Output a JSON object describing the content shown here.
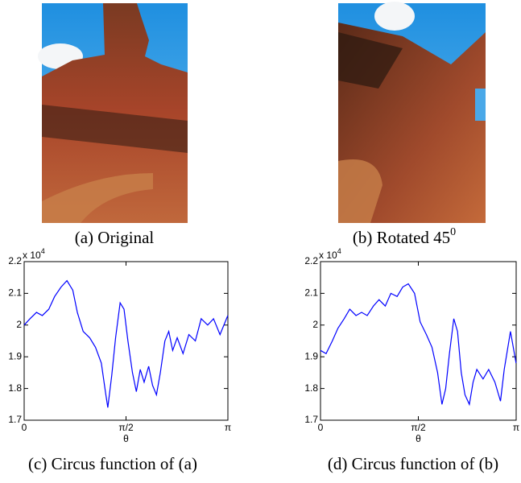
{
  "captions": [
    {
      "text": "(a) Original"
    },
    {
      "text": "(b) Rotated 45",
      "sup": "0"
    },
    {
      "text": "(c) Circus function of (a)"
    },
    {
      "text": "(d) Circus function of (b)"
    }
  ],
  "chart_data": [
    {
      "type": "line",
      "xlabel": "θ",
      "y_multiplier": "x 10",
      "y_multiplier_exponent": "4",
      "xlim": [
        0,
        3.1416
      ],
      "ylim": [
        1.7,
        2.2
      ],
      "xticks": [
        0,
        {
          "value": 1.5708,
          "label": "π/2"
        },
        {
          "value": 3.1416,
          "label": "π"
        }
      ],
      "yticks": [
        1.7,
        1.8,
        1.9,
        2,
        2.1,
        2.2
      ],
      "series": [
        {
          "color": "#0000ff",
          "x": [
            0,
            0.09,
            0.19,
            0.28,
            0.38,
            0.47,
            0.57,
            0.66,
            0.75,
            0.82,
            0.91,
            1.01,
            1.1,
            1.19,
            1.26,
            1.29,
            1.35,
            1.41,
            1.48,
            1.54,
            1.6,
            1.67,
            1.73,
            1.79,
            1.85,
            1.92,
            1.98,
            2.04,
            2.1,
            2.17,
            2.23,
            2.29,
            2.36,
            2.45,
            2.54,
            2.64,
            2.73,
            2.83,
            2.92,
            3.02,
            3.14
          ],
          "values": [
            2.0,
            2.02,
            2.04,
            2.03,
            2.05,
            2.09,
            2.12,
            2.14,
            2.11,
            2.04,
            1.98,
            1.96,
            1.93,
            1.88,
            1.78,
            1.74,
            1.84,
            1.96,
            2.07,
            2.05,
            1.95,
            1.85,
            1.79,
            1.86,
            1.82,
            1.87,
            1.81,
            1.78,
            1.85,
            1.95,
            1.98,
            1.92,
            1.96,
            1.91,
            1.97,
            1.95,
            2.02,
            2.0,
            2.02,
            1.97,
            2.03
          ]
        }
      ]
    },
    {
      "type": "line",
      "xlabel": "θ",
      "y_multiplier": "x 10",
      "y_multiplier_exponent": "4",
      "xlim": [
        0,
        3.1416
      ],
      "ylim": [
        1.7,
        2.2
      ],
      "xticks": [
        0,
        {
          "value": 1.5708,
          "label": "π/2"
        },
        {
          "value": 3.1416,
          "label": "π"
        }
      ],
      "yticks": [
        1.7,
        1.8,
        1.9,
        2,
        2.1,
        2.2
      ],
      "series": [
        {
          "color": "#0000ff",
          "x": [
            0,
            0.09,
            0.19,
            0.28,
            0.38,
            0.47,
            0.57,
            0.66,
            0.75,
            0.85,
            0.94,
            1.04,
            1.13,
            1.23,
            1.32,
            1.41,
            1.51,
            1.6,
            1.7,
            1.79,
            1.88,
            1.95,
            2.01,
            2.07,
            2.14,
            2.2,
            2.26,
            2.32,
            2.39,
            2.45,
            2.51,
            2.61,
            2.7,
            2.8,
            2.89,
            2.95,
            3.05,
            3.14
          ],
          "values": [
            1.92,
            1.91,
            1.95,
            1.99,
            2.02,
            2.05,
            2.03,
            2.04,
            2.03,
            2.06,
            2.08,
            2.06,
            2.1,
            2.09,
            2.12,
            2.13,
            2.1,
            2.01,
            1.97,
            1.93,
            1.85,
            1.75,
            1.8,
            1.91,
            2.02,
            1.98,
            1.85,
            1.78,
            1.75,
            1.82,
            1.86,
            1.83,
            1.86,
            1.82,
            1.76,
            1.86,
            1.98,
            1.88
          ]
        }
      ]
    }
  ]
}
